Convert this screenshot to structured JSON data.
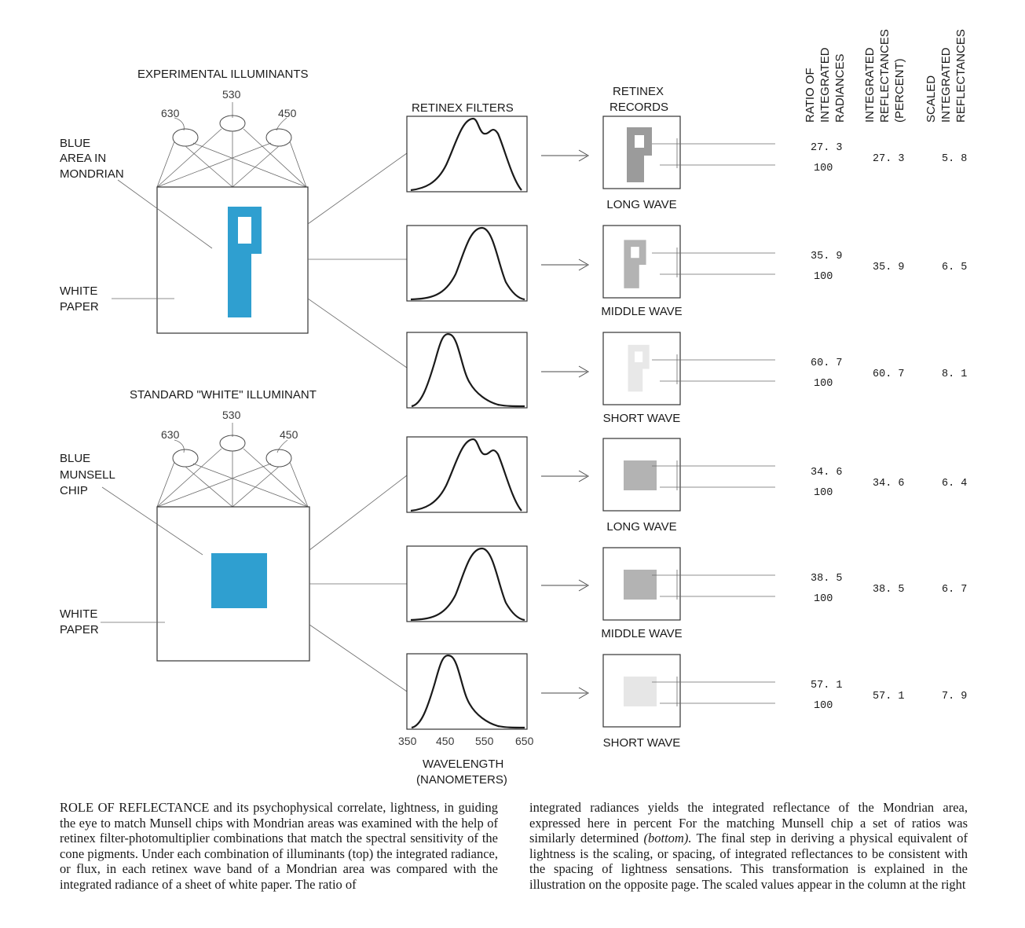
{
  "diagram": {
    "experimental_title": "EXPERIMENTAL ILLUMINANTS",
    "standard_title": "STANDARD \"WHITE\" ILLUMINANT",
    "lamp_labels": [
      "630",
      "530",
      "450"
    ],
    "top_labels": {
      "blue_line1": "BLUE",
      "blue_line2": "AREA IN",
      "blue_line3": "MONDRIAN",
      "white_line1": "WHITE",
      "white_line2": "PAPER"
    },
    "bottom_labels": {
      "blue_line1": "BLUE",
      "blue_line2": "MUNSELL",
      "blue_line3": "CHIP",
      "white_line1": "WHITE",
      "white_line2": "PAPER"
    },
    "filters_title": "RETINEX FILTERS",
    "records_title_line1": "RETINEX",
    "records_title_line2": "RECORDS",
    "wave_labels": [
      "LONG WAVE",
      "MIDDLE WAVE",
      "SHORT WAVE",
      "LONG WAVE",
      "MIDDLE WAVE",
      "SHORT WAVE"
    ],
    "axis_ticks": [
      "350",
      "450",
      "550",
      "650"
    ],
    "axis_label_line1": "WAVELENGTH",
    "axis_label_line2": "(NANOMETERS)",
    "column_headers": {
      "ratio": [
        "RATIO OF",
        "INTEGRATED",
        "RADIANCES"
      ],
      "integrated": [
        "INTEGRATED",
        "REFLECTANCES",
        "(PERCENT)"
      ],
      "scaled": [
        "SCALED",
        "INTEGRATED",
        "REFLECTANCES"
      ]
    },
    "rows": [
      {
        "ratio_top": "27. 3",
        "ratio_bottom": "100",
        "integrated": "27. 3",
        "scaled": "5. 8"
      },
      {
        "ratio_top": "35. 9",
        "ratio_bottom": "100",
        "integrated": "35. 9",
        "scaled": "6. 5"
      },
      {
        "ratio_top": "60. 7",
        "ratio_bottom": "100",
        "integrated": "60. 7",
        "scaled": "8. 1"
      },
      {
        "ratio_top": "34. 6",
        "ratio_bottom": "100",
        "integrated": "34. 6",
        "scaled": "6. 4"
      },
      {
        "ratio_top": "38. 5",
        "ratio_bottom": "100",
        "integrated": "38. 5",
        "scaled": "6. 7"
      },
      {
        "ratio_top": "57. 1",
        "ratio_bottom": "100",
        "integrated": "57. 1",
        "scaled": "7. 9"
      }
    ],
    "colors": {
      "blue": "#2f9fd0",
      "record_dark": "#9b9b9b",
      "record_mid": "#b3b3b3",
      "record_light": "#d6d6d6"
    }
  },
  "caption": {
    "left_lead": "ROLE OF REFLECTANCE",
    "left_body": " and its psychophysical correlate, lightness, in guiding the eye to match Munsell chips with Mondrian areas was examined with the help of retinex filter-photomultiplier combinations that match the spectral sensitivity of the cone pigments. Under each combination of illuminants (top) the integrated radiance, or flux, in each retinex wave band of a Mondrian area was compared with the integrated radiance of a sheet of white paper. The ratio of",
    "right_part1": "integrated radiances yields the integrated reflectance of the Mondrian area, expressed here in percent For the matching Munsell chip a set of ratios was similarly determined ",
    "right_emph": "(bottom).",
    "right_part2": " The final step in deriving a physical equivalent of lightness is the scaling, or spacing, of integrated reflectances to be consistent with the spacing of lightness sensations. This transformation is explained in the illustration on the opposite page. The scaled values appear in the column at the right"
  }
}
